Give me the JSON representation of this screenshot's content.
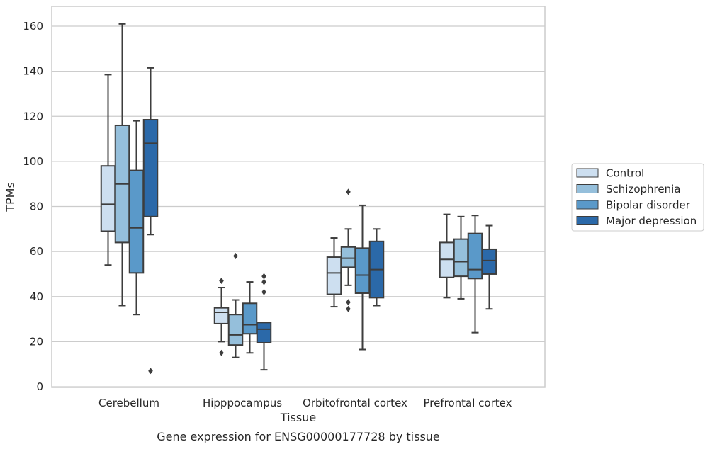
{
  "chart_data": {
    "type": "box",
    "title": "Gene expression for ENSG00000177728 by tissue",
    "xlabel": "Tissue",
    "ylabel": "TPMs",
    "ylim": [
      0,
      168
    ],
    "yticks": [
      0,
      20,
      40,
      60,
      80,
      100,
      120,
      140,
      160
    ],
    "grid": true,
    "legend_position": "right",
    "categories": [
      "Cerebellum",
      "Hipppocampus",
      "Orbitofrontal cortex",
      "Prefrontal cortex"
    ],
    "series": [
      {
        "name": "Control",
        "color": "#cddff0",
        "boxes": [
          {
            "whislo": 54,
            "q1": 69,
            "med": 81,
            "q3": 98,
            "whishi": 138.5,
            "fliers": []
          },
          {
            "whislo": 20,
            "q1": 28,
            "med": 33,
            "q3": 35,
            "whishi": 44,
            "fliers": [
              47,
              15
            ]
          },
          {
            "whislo": 35.5,
            "q1": 41,
            "med": 50.5,
            "q3": 57.5,
            "whishi": 66,
            "fliers": []
          },
          {
            "whislo": 39.5,
            "q1": 48.5,
            "med": 56.5,
            "q3": 64,
            "whishi": 76.5,
            "fliers": []
          }
        ]
      },
      {
        "name": "Schizophrenia",
        "color": "#95bfdb",
        "boxes": [
          {
            "whislo": 36,
            "q1": 64,
            "med": 90,
            "q3": 116,
            "whishi": 161,
            "fliers": []
          },
          {
            "whislo": 13,
            "q1": 18.5,
            "med": 23,
            "q3": 32,
            "whishi": 38.5,
            "fliers": [
              58
            ]
          },
          {
            "whislo": 45,
            "q1": 53,
            "med": 57,
            "q3": 62,
            "whishi": 70,
            "fliers": [
              86.5,
              37.5,
              34.5
            ]
          },
          {
            "whislo": 39,
            "q1": 49,
            "med": 55.5,
            "q3": 65.5,
            "whishi": 75.5,
            "fliers": []
          }
        ]
      },
      {
        "name": "Bipolar disorder",
        "color": "#5a99c9",
        "boxes": [
          {
            "whislo": 32,
            "q1": 50.5,
            "med": 70.5,
            "q3": 96,
            "whishi": 118,
            "fliers": []
          },
          {
            "whislo": 15,
            "q1": 23.5,
            "med": 27.5,
            "q3": 37,
            "whishi": 46.5,
            "fliers": []
          },
          {
            "whislo": 16.5,
            "q1": 41.5,
            "med": 49.5,
            "q3": 61.5,
            "whishi": 80.5,
            "fliers": []
          },
          {
            "whislo": 24,
            "q1": 48,
            "med": 52,
            "q3": 68,
            "whishi": 76,
            "fliers": []
          }
        ]
      },
      {
        "name": "Major depression",
        "color": "#2b69a9",
        "boxes": [
          {
            "whislo": 67.5,
            "q1": 75.5,
            "med": 108,
            "q3": 118.5,
            "whishi": 141.5,
            "fliers": [
              7
            ]
          },
          {
            "whislo": 7.5,
            "q1": 19.5,
            "med": 25.5,
            "q3": 28.5,
            "whishi": 28.5,
            "fliers": [
              49,
              46.5,
              42
            ]
          },
          {
            "whislo": 36,
            "q1": 39.5,
            "med": 52,
            "q3": 64.5,
            "whishi": 70,
            "fliers": []
          },
          {
            "whislo": 34.5,
            "q1": 50,
            "med": 56,
            "q3": 61,
            "whishi": 71.5,
            "fliers": []
          }
        ]
      }
    ]
  }
}
